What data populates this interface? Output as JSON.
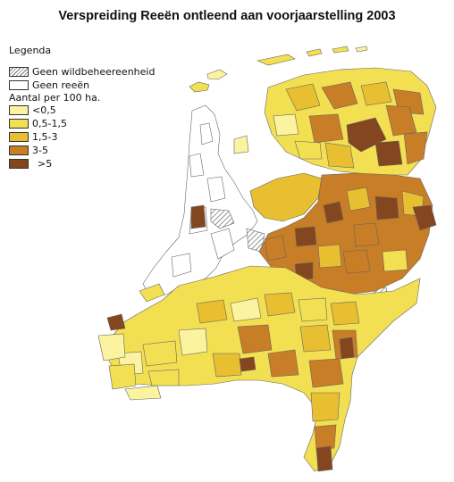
{
  "title": "Verspreiding Reeën ontleend aan voorjaarstelling 2003",
  "legend": {
    "heading": "Legenda",
    "no_unit_label": "Geen wildbeheereenheid",
    "no_deer_label": "Geen reeën",
    "density_heading": "Aantal per 100 ha.",
    "classes": [
      {
        "label": "<0,5",
        "color": "#fbf3a0"
      },
      {
        "label": "0,5-1,5",
        "color": "#f3df52"
      },
      {
        "label": "1,5-3",
        "color": "#e7bf30"
      },
      {
        "label": "3-5",
        "color": "#c87d27"
      },
      {
        "label": ">5",
        "color": "#84461f"
      }
    ]
  },
  "colors": {
    "no_deer": "#ffffff",
    "hatch": "#777777",
    "border": "#666666"
  }
}
